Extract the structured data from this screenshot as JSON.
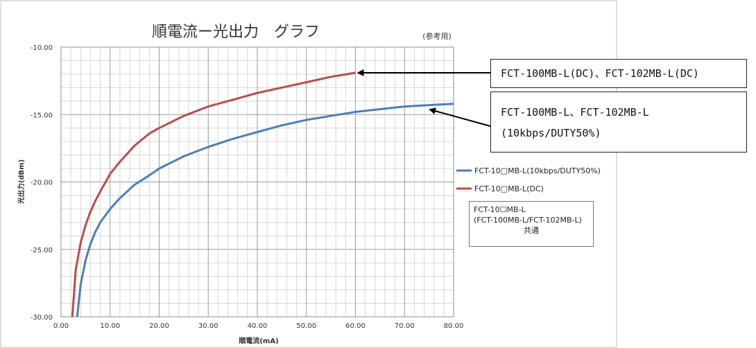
{
  "chart_data": {
    "type": "line",
    "title": "順電流ー光出力　グラフ",
    "subtitle": "(参考用)",
    "xlabel": "順電流(mA)",
    "ylabel": "光出力(dBm)",
    "xlim": [
      0,
      80
    ],
    "ylim": [
      -30,
      -10
    ],
    "x_ticks": [
      "0.00",
      "10.00",
      "20.00",
      "30.00",
      "40.00",
      "50.00",
      "60.00",
      "70.00",
      "80.00"
    ],
    "y_ticks": [
      "-10.00",
      "-15.00",
      "-20.00",
      "-25.00",
      "-30.00"
    ],
    "grid": true,
    "legend_position": "right",
    "series": [
      {
        "name": "FCT-10□MB-L(10kbps/DUTY50%)",
        "color": "#4a7ebb",
        "points": [
          [
            3.3,
            -30
          ],
          [
            4,
            -27.6
          ],
          [
            5,
            -25.8
          ],
          [
            6,
            -24.6
          ],
          [
            7,
            -23.7
          ],
          [
            8,
            -23.0
          ],
          [
            10,
            -22.0
          ],
          [
            12,
            -21.2
          ],
          [
            15,
            -20.2
          ],
          [
            18,
            -19.5
          ],
          [
            20,
            -19.0
          ],
          [
            25,
            -18.1
          ],
          [
            30,
            -17.4
          ],
          [
            35,
            -16.8
          ],
          [
            40,
            -16.3
          ],
          [
            45,
            -15.8
          ],
          [
            50,
            -15.4
          ],
          [
            55,
            -15.1
          ],
          [
            60,
            -14.8
          ],
          [
            65,
            -14.6
          ],
          [
            70,
            -14.4
          ],
          [
            75,
            -14.3
          ],
          [
            80,
            -14.2
          ]
        ]
      },
      {
        "name": "FCT-10□MB-L(DC)",
        "color": "#be4b48",
        "points": [
          [
            2.3,
            -30
          ],
          [
            3,
            -26.5
          ],
          [
            4,
            -24.5
          ],
          [
            5,
            -23.2
          ],
          [
            6,
            -22.2
          ],
          [
            7,
            -21.4
          ],
          [
            8,
            -20.7
          ],
          [
            10,
            -19.4
          ],
          [
            12,
            -18.5
          ],
          [
            15,
            -17.3
          ],
          [
            18,
            -16.4
          ],
          [
            20,
            -16.0
          ],
          [
            25,
            -15.1
          ],
          [
            30,
            -14.4
          ],
          [
            35,
            -13.9
          ],
          [
            40,
            -13.4
          ],
          [
            45,
            -13.0
          ],
          [
            50,
            -12.6
          ],
          [
            55,
            -12.2
          ],
          [
            60,
            -11.9
          ]
        ]
      }
    ]
  },
  "callouts": {
    "dc": "FCT-100MB-L(DC)、FCT-102MB-L(DC)",
    "pwm_line1": "FCT-100MB-L、FCT-102MB-L",
    "pwm_line2": "(10kbps/DUTY50%)"
  },
  "note": {
    "line1": "FCT-10☐MB-L",
    "line2": "(FCT-100MB-L/FCT-102MB-L)",
    "line3": "共通"
  }
}
